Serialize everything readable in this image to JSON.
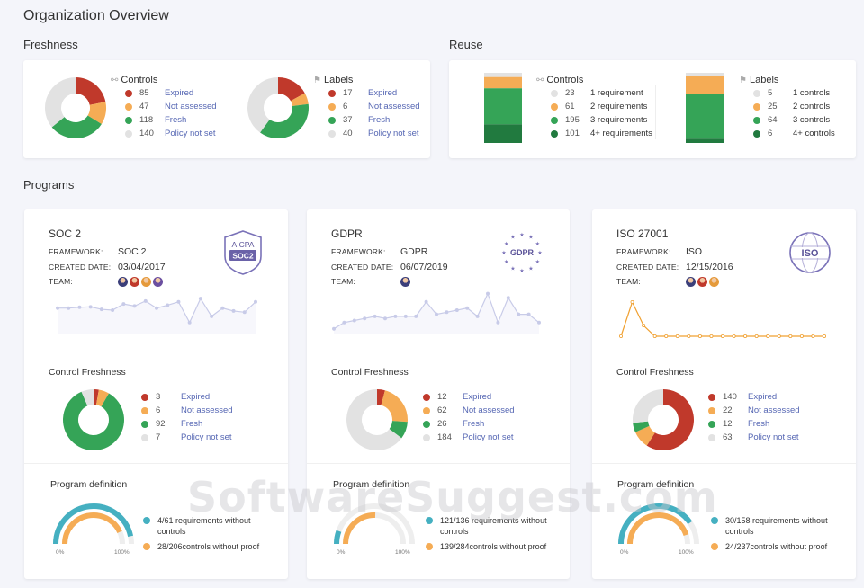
{
  "page": {
    "title": "Organization Overview",
    "watermark": "SoftwareSuggest.com"
  },
  "colors": {
    "expired": "#c0392b",
    "not_assessed": "#f5ac55",
    "fresh": "#35a457",
    "not_set": "#e2e2e2",
    "teal": "#45b0c1",
    "orange": "#f0a030",
    "line": "#c8cbe8",
    "dark_green": "#217a3f"
  },
  "freshness": {
    "title": "Freshness",
    "controls": {
      "title": "Controls",
      "icon": "graph-icon",
      "items": [
        {
          "value": "85",
          "label": "Expired"
        },
        {
          "value": "47",
          "label": "Not assessed"
        },
        {
          "value": "118",
          "label": "Fresh"
        },
        {
          "value": "140",
          "label": "Policy not set"
        }
      ]
    },
    "labels": {
      "title": "Labels",
      "icon": "bookmark-icon",
      "items": [
        {
          "value": "17",
          "label": "Expired"
        },
        {
          "value": "6",
          "label": "Not assessed"
        },
        {
          "value": "37",
          "label": "Fresh"
        },
        {
          "value": "40",
          "label": "Policy not set"
        }
      ]
    }
  },
  "reuse": {
    "title": "Reuse",
    "controls": {
      "title": "Controls",
      "icon": "graph-icon",
      "items": [
        {
          "value": "23",
          "label": "1 requirement"
        },
        {
          "value": "61",
          "label": "2 requirements"
        },
        {
          "value": "195",
          "label": "3 requirements"
        },
        {
          "value": "101",
          "label": "4+ requirements"
        }
      ]
    },
    "labels": {
      "title": "Labels",
      "icon": "bookmark-icon",
      "items": [
        {
          "value": "5",
          "label": "1 controls"
        },
        {
          "value": "25",
          "label": "2 controls"
        },
        {
          "value": "64",
          "label": "3 controls"
        },
        {
          "value": "6",
          "label": "4+ controls"
        }
      ]
    }
  },
  "programs": {
    "title": "Programs",
    "meta_keys": {
      "framework": "FRAMEWORK:",
      "created": "CREATED DATE:",
      "team": "TEAM:"
    },
    "freshness_title": "Control Freshness",
    "definition_title": "Program definition",
    "gauge_min": "0%",
    "gauge_max": "100%",
    "items": [
      {
        "name": "SOC 2",
        "framework": "SOC 2",
        "created": "03/04/2017",
        "badge": {
          "top": "AICPA",
          "bottom": "SOC2"
        },
        "team_count": 4,
        "trend": [
          0.55,
          0.55,
          0.57,
          0.58,
          0.52,
          0.5,
          0.65,
          0.6,
          0.72,
          0.55,
          0.62,
          0.7,
          0.2,
          0.78,
          0.35,
          0.55,
          0.48,
          0.45,
          0.7
        ],
        "freshness": [
          {
            "value": "3",
            "label": "Expired"
          },
          {
            "value": "6",
            "label": "Not assessed"
          },
          {
            "value": "92",
            "label": "Fresh"
          },
          {
            "value": "7",
            "label": "Policy not set"
          }
        ],
        "definition": [
          {
            "text": "4/61 requirements without controls"
          },
          {
            "text": "28/206controls without proof"
          }
        ],
        "gauge_teal": 0.934,
        "gauge_orange": 0.864
      },
      {
        "name": "GDPR",
        "framework": "GDPR",
        "created": "06/07/2019",
        "badge": {
          "top": "",
          "bottom": "GDPR"
        },
        "team_count": 1,
        "trend": [
          0.05,
          0.2,
          0.25,
          0.3,
          0.35,
          0.3,
          0.35,
          0.35,
          0.35,
          0.7,
          0.4,
          0.45,
          0.5,
          0.55,
          0.35,
          0.9,
          0.2,
          0.8,
          0.4,
          0.4,
          0.2
        ],
        "freshness": [
          {
            "value": "12",
            "label": "Expired"
          },
          {
            "value": "62",
            "label": "Not assessed"
          },
          {
            "value": "26",
            "label": "Fresh"
          },
          {
            "value": "184",
            "label": "Policy not set"
          }
        ],
        "definition": [
          {
            "text": "121/136 requirements without controls"
          },
          {
            "text": "139/284controls without proof"
          }
        ],
        "gauge_teal": 0.11,
        "gauge_orange": 0.51
      },
      {
        "name": "ISO 27001",
        "framework": "ISO",
        "created": "12/15/2016",
        "badge": {
          "top": "",
          "bottom": "ISO"
        },
        "team_count": 3,
        "trend": [
          0.05,
          1.0,
          0.35,
          0.05,
          0.05,
          0.05,
          0.05,
          0.05,
          0.05,
          0.05,
          0.05,
          0.05,
          0.05,
          0.05,
          0.05,
          0.05,
          0.05,
          0.05,
          0.05
        ],
        "freshness": [
          {
            "value": "140",
            "label": "Expired"
          },
          {
            "value": "22",
            "label": "Not assessed"
          },
          {
            "value": "12",
            "label": "Fresh"
          },
          {
            "value": "63",
            "label": "Policy not set"
          }
        ],
        "definition": [
          {
            "text": "30/158 requirements without controls"
          },
          {
            "text": "24/237controls without proof"
          }
        ],
        "gauge_teal": 0.81,
        "gauge_orange": 0.9
      }
    ]
  }
}
